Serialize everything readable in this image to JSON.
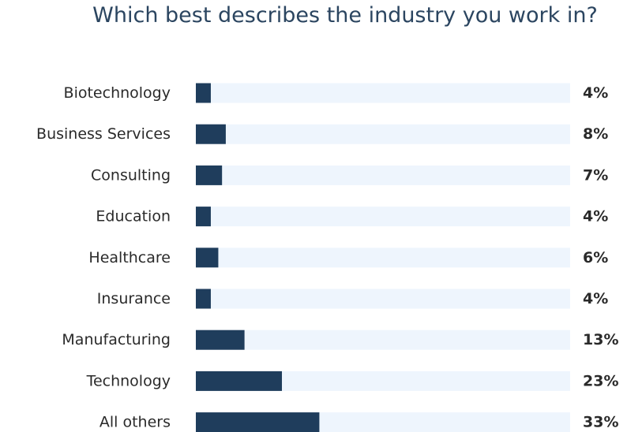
{
  "chart_data": {
    "type": "bar",
    "orientation": "horizontal",
    "title": "Which best describes the industry you work in?",
    "categories": [
      "Biotechnology",
      "Business Services",
      "Consulting",
      "Education",
      "Healthcare",
      "Insurance",
      "Manufacturing",
      "Technology",
      "All others"
    ],
    "values": [
      4,
      8,
      7,
      4,
      6,
      4,
      13,
      23,
      33
    ],
    "value_labels": [
      "4%",
      "8%",
      "7%",
      "4%",
      "6%",
      "4%",
      "13%",
      "23%",
      "33%"
    ],
    "unit": "%",
    "xlim": [
      0,
      100
    ],
    "grid": false,
    "legend": "none",
    "colors": {
      "bar": "#1f3d5c",
      "track": "#eef5fd",
      "title": "#2b4560",
      "text": "#2a2a2a"
    }
  }
}
